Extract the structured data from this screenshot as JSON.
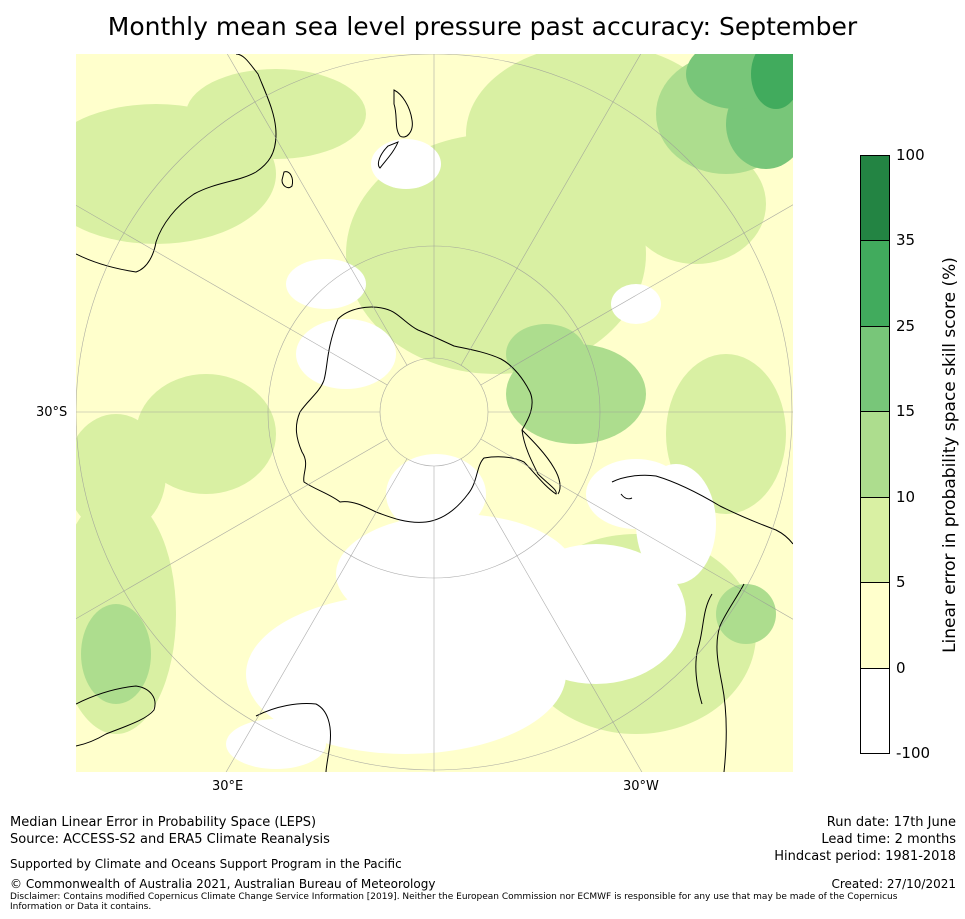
{
  "title": "Monthly mean sea level pressure past accuracy: September",
  "map": {
    "projection": "south-polar stereographic",
    "lat_label": "30°S",
    "lon_labels": {
      "left": "30°E",
      "right": "30°W"
    }
  },
  "colorbar": {
    "label": "Linear error in probability space skill score (%)",
    "ticks": [
      "100",
      "35",
      "25",
      "15",
      "10",
      "5",
      "0",
      "-100"
    ],
    "bins": [
      {
        "range": "-100 to 0",
        "color": "#ffffff"
      },
      {
        "range": "0 to 5",
        "color": "#ffffcc"
      },
      {
        "range": "5 to 10",
        "color": "#d9f0a3"
      },
      {
        "range": "10 to 15",
        "color": "#addd8e"
      },
      {
        "range": "15 to 25",
        "color": "#78c679"
      },
      {
        "range": "25 to 35",
        "color": "#41ab5d"
      },
      {
        "range": "35 to 100",
        "color": "#238443"
      }
    ]
  },
  "footer": {
    "line1": "Median Linear Error in Probability Space (LEPS)",
    "line2": "Source: ACCESS-S2 and ERA5 Climate Reanalysis",
    "supported": "Supported by Climate and Oceans Support Program in the Pacific",
    "copyright": "© Commonwealth of Australia 2021, Australian Bureau of Meteorology",
    "disclaimer": "Disclaimer: Contains modified Copernicus Climate Change Service Information [2019]. Neither the European Commission nor ECMWF is responsible for any use that may be made of the Copernicus Information or Data it contains.",
    "run_date": "Run date: 17th June",
    "lead_time": "Lead time: 2 months",
    "hindcast": "Hindcast period: 1981-2018",
    "created": "Created: 27/10/2021"
  }
}
